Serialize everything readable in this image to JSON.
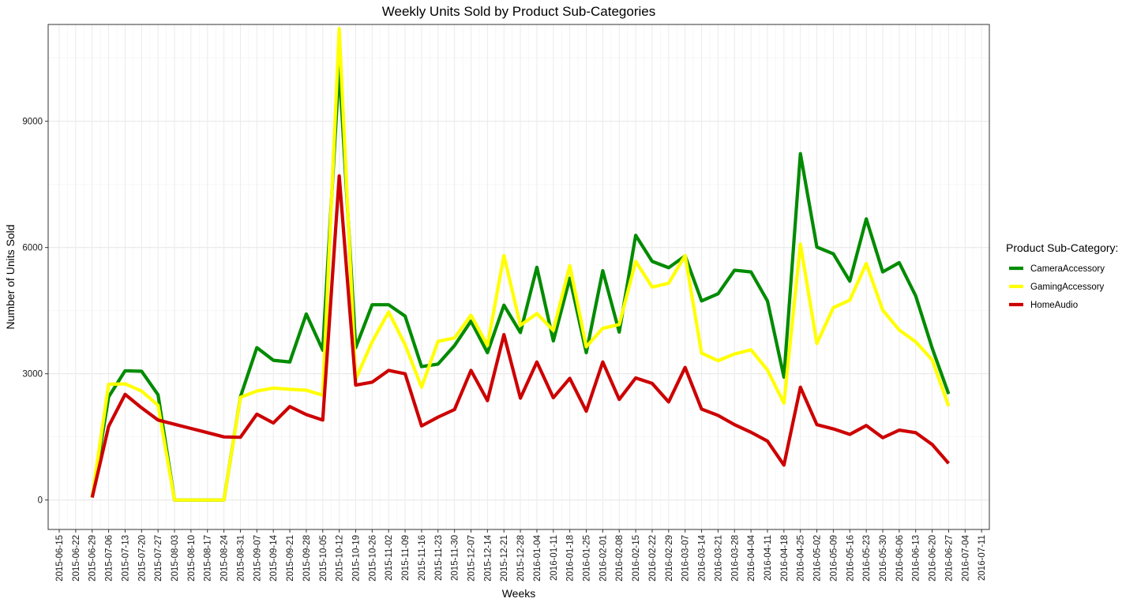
{
  "chart_data": {
    "type": "line",
    "title": "Weekly Units Sold by Product Sub-Categories",
    "xlabel": "Weeks",
    "ylabel": "Number of Units Sold",
    "ylim": [
      -700,
      11300
    ],
    "yticks": [
      0,
      3000,
      6000,
      9000
    ],
    "ytick_labels": [
      "0",
      "3000",
      "6000",
      "9000"
    ],
    "grid": true,
    "legend": {
      "title": "Product Sub-Category:",
      "position": "right"
    },
    "x": [
      "2015-06-15",
      "2015-06-22",
      "2015-06-29",
      "2015-07-06",
      "2015-07-13",
      "2015-07-20",
      "2015-07-27",
      "2015-08-03",
      "2015-08-10",
      "2015-08-17",
      "2015-08-24",
      "2015-08-31",
      "2015-09-07",
      "2015-09-14",
      "2015-09-21",
      "2015-09-28",
      "2015-10-05",
      "2015-10-12",
      "2015-10-19",
      "2015-10-26",
      "2015-11-02",
      "2015-11-09",
      "2015-11-16",
      "2015-11-23",
      "2015-11-30",
      "2015-12-07",
      "2015-12-14",
      "2015-12-21",
      "2015-12-28",
      "2016-01-04",
      "2016-01-11",
      "2016-01-18",
      "2016-01-25",
      "2016-02-01",
      "2016-02-08",
      "2016-02-15",
      "2016-02-22",
      "2016-02-29",
      "2016-03-07",
      "2016-03-14",
      "2016-03-21",
      "2016-03-28",
      "2016-04-04",
      "2016-04-11",
      "2016-04-18",
      "2016-04-25",
      "2016-05-02",
      "2016-05-09",
      "2016-05-16",
      "2016-05-23",
      "2016-05-30",
      "2016-06-06",
      "2016-06-13",
      "2016-06-20",
      "2016-06-27",
      "2016-07-04",
      "2016-07-11"
    ],
    "series": [
      {
        "name": "CameraAccessory",
        "color": "#008B00",
        "values": [
          null,
          null,
          60,
          2450,
          3070,
          3060,
          2500,
          0,
          0,
          0,
          0,
          2450,
          3620,
          3320,
          3280,
          4420,
          3560,
          10300,
          3620,
          4640,
          4640,
          4370,
          3170,
          3230,
          3670,
          4250,
          3500,
          4630,
          3980,
          5530,
          3780,
          5270,
          3500,
          5450,
          3990,
          6290,
          5670,
          5520,
          5800,
          4730,
          4900,
          5460,
          5420,
          4730,
          2920,
          8230,
          6010,
          5850,
          5200,
          6680,
          5420,
          5640,
          4850,
          3610,
          2520,
          null,
          null
        ]
      },
      {
        "name": "GamingAccessory",
        "color": "#FFFF00",
        "values": [
          null,
          null,
          60,
          2750,
          2760,
          2590,
          2250,
          0,
          0,
          0,
          0,
          2440,
          2590,
          2660,
          2630,
          2610,
          2490,
          11200,
          2870,
          3760,
          4470,
          3690,
          2680,
          3770,
          3850,
          4390,
          3670,
          5810,
          4150,
          4430,
          4030,
          5570,
          3640,
          4080,
          4170,
          5670,
          5060,
          5150,
          5810,
          3490,
          3310,
          3470,
          3570,
          3090,
          2300,
          6080,
          3720,
          4570,
          4750,
          5620,
          4510,
          4040,
          3760,
          3330,
          2230,
          null,
          null
        ]
      },
      {
        "name": "HomeAudio",
        "color": "#CD0000",
        "values": [
          null,
          null,
          60,
          1750,
          2510,
          2190,
          1900,
          1800,
          1700,
          1600,
          1500,
          1490,
          2040,
          1830,
          2220,
          2030,
          1900,
          7700,
          2730,
          2800,
          3080,
          3000,
          1760,
          1970,
          2150,
          3080,
          2360,
          3930,
          2420,
          3280,
          2430,
          2890,
          2110,
          3280,
          2390,
          2900,
          2770,
          2330,
          3150,
          2160,
          2010,
          1790,
          1610,
          1400,
          830,
          2680,
          1790,
          1690,
          1560,
          1770,
          1480,
          1660,
          1600,
          1320,
          870,
          null,
          null
        ]
      }
    ]
  }
}
